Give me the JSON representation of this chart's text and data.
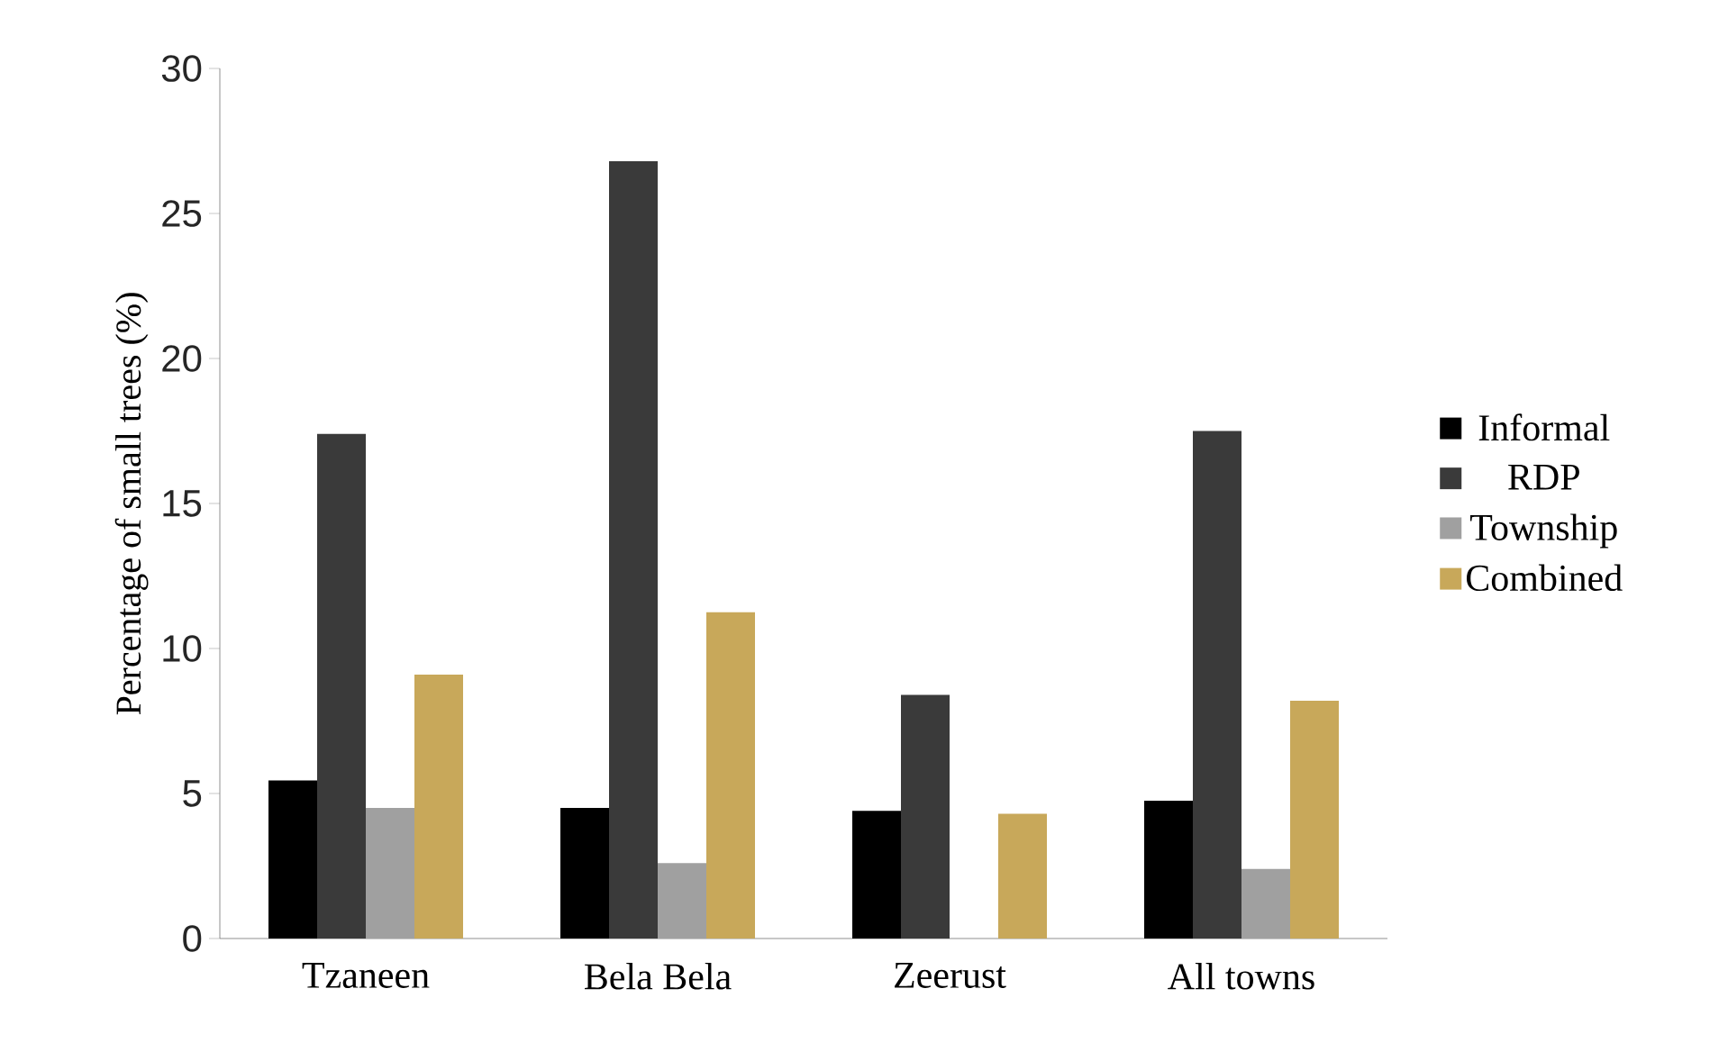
{
  "chart_data": {
    "type": "bar",
    "ylabel": "Percentage of small trees (%)",
    "categories": [
      "Tzaneen",
      "Bela Bela",
      "Zeerust",
      "All towns"
    ],
    "series": [
      {
        "name": "Informal",
        "color": "#000000",
        "values": [
          5.45,
          4.5,
          4.4,
          4.75
        ]
      },
      {
        "name": "RDP",
        "color": "#3a3a3a",
        "values": [
          17.4,
          26.8,
          8.4,
          17.5
        ]
      },
      {
        "name": "Township",
        "color": "#a0a0a0",
        "values": [
          4.5,
          2.6,
          0,
          2.4
        ]
      },
      {
        "name": "Combined",
        "color": "#c8a85a",
        "values": [
          9.1,
          11.25,
          4.3,
          8.2
        ]
      }
    ],
    "ylim": [
      0,
      30
    ],
    "yticks": [
      0,
      5,
      10,
      15,
      20,
      25,
      30
    ],
    "legend": "right",
    "grid": false
  }
}
